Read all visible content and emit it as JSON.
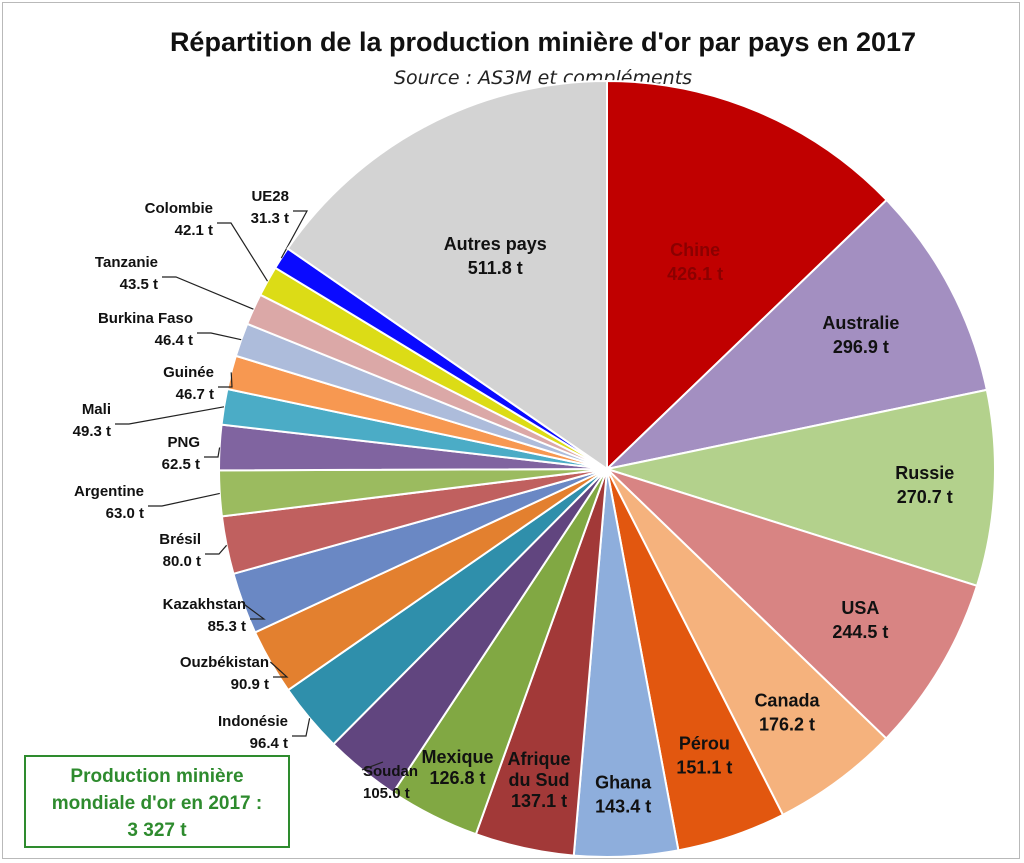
{
  "chart_data": {
    "type": "pie",
    "title": "Répartition de la production minière d'or par pays en 2017",
    "subtitle": "Source : AS3M et compléments",
    "slices": [
      {
        "name": "Chine",
        "value": 426.1,
        "label": "426.1 t",
        "color": "#c00000"
      },
      {
        "name": "Australie",
        "value": 296.9,
        "label": "296.9 t",
        "color": "#a38fc1"
      },
      {
        "name": "Russie",
        "value": 270.7,
        "label": "270.7 t",
        "color": "#b3d18c"
      },
      {
        "name": "USA",
        "value": 244.5,
        "label": "244.5 t",
        "color": "#d88483"
      },
      {
        "name": "Canada",
        "value": 176.2,
        "label": "176.2 t",
        "color": "#f5b27d"
      },
      {
        "name": "Pérou",
        "value": 151.1,
        "label": "151.1 t",
        "color": "#e2570f"
      },
      {
        "name": "Ghana",
        "value": 143.4,
        "label": "143.4 t",
        "color": "#8eaedc"
      },
      {
        "name": "Afrique du Sud",
        "value": 137.1,
        "label": "137.1 t",
        "color": "#a23938"
      },
      {
        "name": "Mexique",
        "value": 126.8,
        "label": "126.8 t",
        "color": "#81a843"
      },
      {
        "name": "Soudan",
        "value": 105.0,
        "label": "105.0 t",
        "color": "#61457f"
      },
      {
        "name": "Indonésie",
        "value": 96.4,
        "label": "96.4 t",
        "color": "#2f8fab"
      },
      {
        "name": "Ouzbékistan",
        "value": 90.9,
        "label": "90.9 t",
        "color": "#e3802f"
      },
      {
        "name": "Kazakhstan",
        "value": 85.3,
        "label": "85.3 t",
        "color": "#6a88c4"
      },
      {
        "name": "Brésil",
        "value": 80.0,
        "label": "80.0 t",
        "color": "#c0605f"
      },
      {
        "name": "Argentine",
        "value": 63.0,
        "label": "63.0 t",
        "color": "#9bbb5f"
      },
      {
        "name": "PNG",
        "value": 62.5,
        "label": "62.5 t",
        "color": "#8064a0"
      },
      {
        "name": "Mali",
        "value": 49.3,
        "label": "49.3 t",
        "color": "#4bacc6"
      },
      {
        "name": "Guinée",
        "value": 46.7,
        "label": "46.7 t",
        "color": "#f79851"
      },
      {
        "name": "Burkina Faso",
        "value": 46.4,
        "label": "46.4 t",
        "color": "#adbcdb"
      },
      {
        "name": "Tanzanie",
        "value": 43.5,
        "label": "43.5 t",
        "color": "#dba8a7"
      },
      {
        "name": "Colombie",
        "value": 42.1,
        "label": "42.1 t",
        "color": "#dcdc16"
      },
      {
        "name": "UE28",
        "value": 31.3,
        "label": "31.3 t",
        "color": "#0a0aff"
      },
      {
        "name": "Autres pays",
        "value": 511.8,
        "label": "511.8 t",
        "color": "#d3d3d3"
      }
    ]
  },
  "total_box": {
    "line1": "Production minière",
    "line2": "mondiale d'or en 2017 :",
    "line3": "3 327 t"
  }
}
